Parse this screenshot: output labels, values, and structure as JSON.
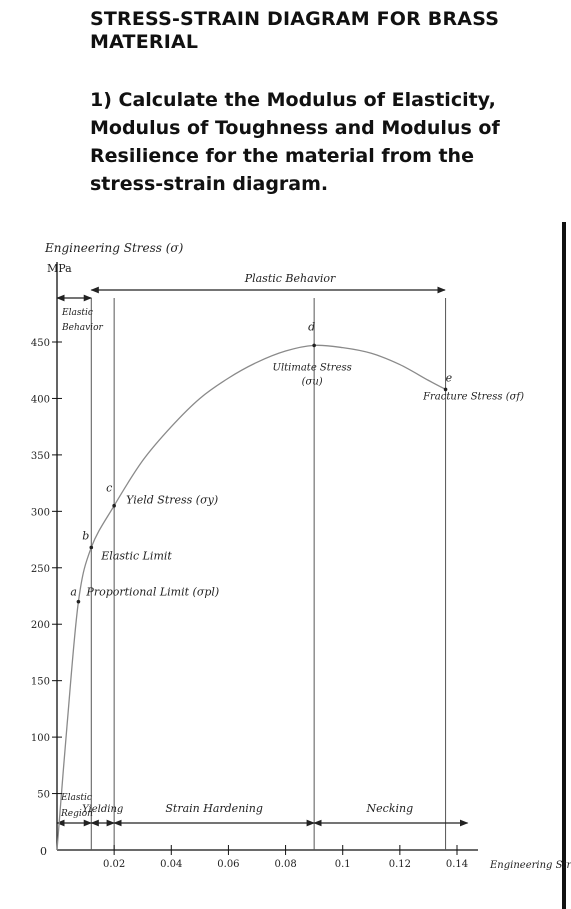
{
  "header": {
    "title": "STRESS-STRAIN DIAGRAM FOR BRASS MATERIAL",
    "question": "1) Calculate the Modulus of Elasticity, Modulus of Toughness and Modulus of Resilience for the material from the stress-strain diagram."
  },
  "chart_data": {
    "type": "line",
    "ylabel": "Engineering Stress (σ)",
    "yunit": "MPa",
    "xlabel": "Engineering Strain",
    "origin_label": "0",
    "xlim": [
      0,
      0.14
    ],
    "ylim": [
      0,
      450
    ],
    "x_ticks": [
      0.02,
      0.04,
      0.06,
      0.08,
      0.1,
      0.12,
      0.14
    ],
    "x_tick_labels": [
      "0.02",
      "0.04",
      "0.06",
      "0.08",
      "0.1",
      "0.12",
      "0.14"
    ],
    "y_ticks": [
      50,
      100,
      150,
      200,
      250,
      300,
      350,
      400,
      450
    ],
    "y_tick_labels": [
      "50",
      "100",
      "150",
      "200",
      "250",
      "300",
      "350",
      "400",
      "450"
    ],
    "series": [
      {
        "x": [
          0,
          0.0035,
          0.0075,
          0.012,
          0.02,
          0.03,
          0.04,
          0.05,
          0.06,
          0.07,
          0.08,
          0.09,
          0.1,
          0.11,
          0.12,
          0.13,
          0.136
        ],
        "y": [
          0,
          110,
          220,
          268,
          305,
          345,
          375,
          400,
          418,
          432,
          442,
          447,
          445,
          440,
          430,
          416,
          408
        ]
      }
    ],
    "points": [
      {
        "letter": "a",
        "x": 0.0075,
        "y": 220,
        "label": "Proportional Limit (σpl)"
      },
      {
        "letter": "b",
        "x": 0.012,
        "y": 268,
        "label": "Elastic Limit"
      },
      {
        "letter": "c",
        "x": 0.02,
        "y": 305,
        "label": "Yield Stress (σy)"
      },
      {
        "letter": "d",
        "x": 0.09,
        "y": 447,
        "label": "Ultimate Stress (σu)"
      },
      {
        "letter": "e",
        "x": 0.136,
        "y": 408,
        "label": "Fracture Stress (σf)"
      }
    ],
    "regions_top": [
      {
        "label": "Elastic Behavior",
        "x_start": 0,
        "x_end": 0.012
      },
      {
        "label": "Plastic Behavior",
        "x_start": 0.012,
        "x_end": 0.136
      }
    ],
    "regions_bottom": [
      {
        "label": "Elastic Region",
        "x_start": 0,
        "x_end": 0.012
      },
      {
        "label": "Yielding",
        "x_start": 0.012,
        "x_end": 0.02
      },
      {
        "label": "Strain Hardening",
        "x_start": 0.02,
        "x_end": 0.09
      },
      {
        "label": "Necking",
        "x_start": 0.09,
        "x_end": 0.136
      }
    ],
    "grid": false,
    "legend": "none",
    "colors": {
      "curve": "#8a8a8a",
      "axes": "#111111",
      "ink": "#222222"
    }
  }
}
